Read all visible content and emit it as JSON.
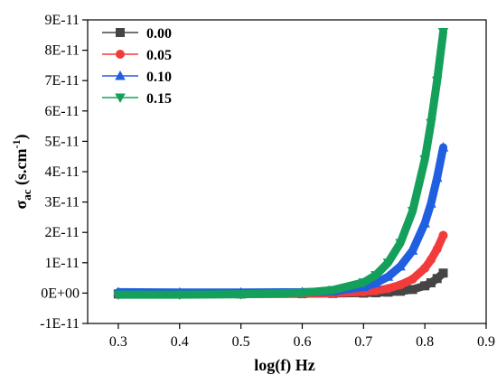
{
  "chart_data": {
    "type": "scatter",
    "xlabel": "log(f) Hz",
    "ylabel": {
      "base": "σ",
      "sub": "ac",
      "unit": " (s.cm",
      "sup": "-1",
      "close": ")"
    },
    "xlim": [
      0.25,
      0.9
    ],
    "ylim": [
      -1e-11,
      9e-11
    ],
    "x_ticks": [
      0.3,
      0.4,
      0.5,
      0.6,
      0.7,
      0.8,
      0.9
    ],
    "x_tick_labels": [
      "0.3",
      "0.4",
      "0.5",
      "0.6",
      "0.7",
      "0.8",
      "0.9"
    ],
    "y_ticks": [
      -1e-11,
      0,
      1e-11,
      2e-11,
      3e-11,
      4e-11,
      5e-11,
      6e-11,
      7e-11,
      8e-11,
      9e-11
    ],
    "y_tick_labels": [
      "-1E-11",
      "0E+00",
      "1E-11",
      "2E-11",
      "3E-11",
      "4E-11",
      "5E-11",
      "6E-11",
      "7E-11",
      "8E-11",
      "9E-11"
    ],
    "grid": false,
    "legend_position": "top-left",
    "series": [
      {
        "name": "0.00",
        "color": "#454545",
        "marker": "square",
        "x": [
          0.3,
          0.4,
          0.5,
          0.6,
          0.65,
          0.7,
          0.72,
          0.74,
          0.76,
          0.78,
          0.8,
          0.81,
          0.82,
          0.83
        ],
        "values": [
          -3e-13,
          -3e-13,
          -3e-13,
          -2e-13,
          -1e-13,
          0,
          1e-13,
          3e-13,
          6e-13,
          1.2e-12,
          2.4e-12,
          3.4e-12,
          4.8e-12,
          6.6e-12
        ]
      },
      {
        "name": "0.05",
        "color": "#f23b3b",
        "marker": "circle",
        "x": [
          0.3,
          0.4,
          0.5,
          0.6,
          0.65,
          0.7,
          0.72,
          0.74,
          0.76,
          0.78,
          0.8,
          0.81,
          0.82,
          0.83
        ],
        "values": [
          -4e-13,
          -4e-13,
          -3e-13,
          -2e-13,
          0,
          4e-13,
          8e-13,
          1.5e-12,
          2.7e-12,
          4.6e-12,
          8.2e-12,
          1.1e-11,
          1.45e-11,
          1.9e-11
        ]
      },
      {
        "name": "0.10",
        "color": "#1f5fe0",
        "marker": "triangle-up",
        "x": [
          0.3,
          0.4,
          0.5,
          0.6,
          0.65,
          0.7,
          0.72,
          0.74,
          0.76,
          0.78,
          0.8,
          0.81,
          0.82,
          0.83
        ],
        "values": [
          3e-13,
          2e-13,
          2e-13,
          3e-13,
          6e-13,
          2e-12,
          3.3e-12,
          5.4e-12,
          8.8e-12,
          1.4e-11,
          2.3e-11,
          2.95e-11,
          3.8e-11,
          4.8e-11
        ]
      },
      {
        "name": "0.15",
        "color": "#14a05a",
        "marker": "triangle-down",
        "x": [
          0.3,
          0.4,
          0.5,
          0.6,
          0.65,
          0.7,
          0.72,
          0.74,
          0.76,
          0.78,
          0.8,
          0.81,
          0.82,
          0.83
        ],
        "values": [
          -5e-13,
          -5e-13,
          -4e-13,
          1e-13,
          1e-12,
          3.5e-12,
          5.9e-12,
          1e-11,
          1.65e-11,
          2.7e-11,
          4.4e-11,
          5.6e-11,
          7e-11,
          8.6e-11
        ]
      }
    ]
  }
}
